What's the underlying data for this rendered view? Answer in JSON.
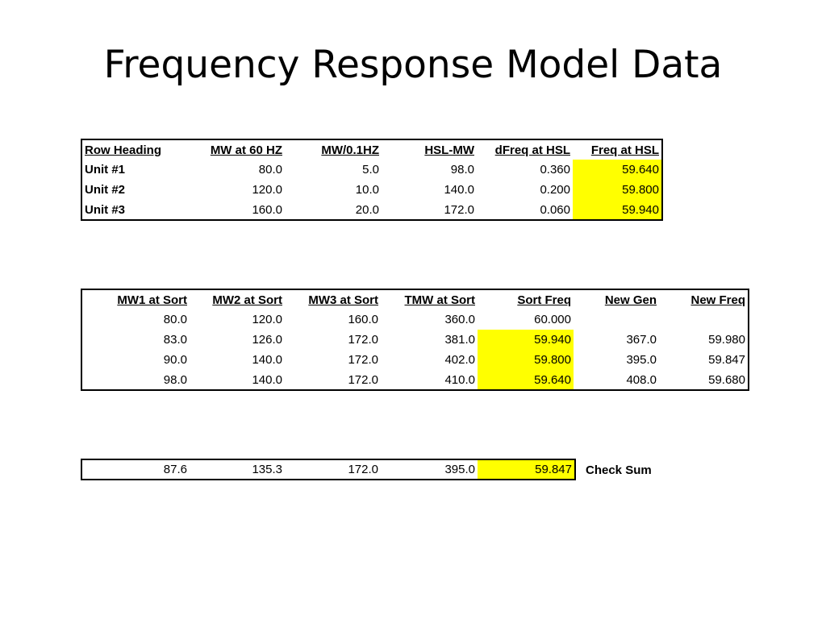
{
  "title": "Frequency Response Model Data",
  "table1": {
    "headers": [
      "Row Heading",
      "MW at 60 HZ",
      "MW/0.1HZ",
      "HSL-MW",
      "dFreq at HSL",
      "Freq at HSL"
    ],
    "rows": [
      [
        "Unit #1",
        "80.0",
        "5.0",
        "98.0",
        "0.360",
        "59.640"
      ],
      [
        "Unit #2",
        "120.0",
        "10.0",
        "140.0",
        "0.200",
        "59.800"
      ],
      [
        "Unit #3",
        "160.0",
        "20.0",
        "172.0",
        "0.060",
        "59.940"
      ]
    ]
  },
  "table2": {
    "headers": [
      "MW1 at Sort",
      "MW2 at Sort",
      "MW3 at Sort",
      "TMW at Sort",
      "Sort Freq",
      "New Gen",
      "New Freq"
    ],
    "rows": [
      [
        "80.0",
        "120.0",
        "160.0",
        "360.0",
        "60.000",
        "",
        ""
      ],
      [
        "83.0",
        "126.0",
        "172.0",
        "381.0",
        "59.940",
        "367.0",
        "59.980"
      ],
      [
        "90.0",
        "140.0",
        "172.0",
        "402.0",
        "59.800",
        "395.0",
        "59.847"
      ],
      [
        "98.0",
        "140.0",
        "172.0",
        "410.0",
        "59.640",
        "408.0",
        "59.680"
      ]
    ]
  },
  "table3": {
    "row": [
      "87.6",
      "135.3",
      "172.0",
      "395.0",
      "59.847"
    ],
    "label": "Check Sum"
  },
  "colors": {
    "highlight": "#ffff00",
    "border": "#000000"
  }
}
